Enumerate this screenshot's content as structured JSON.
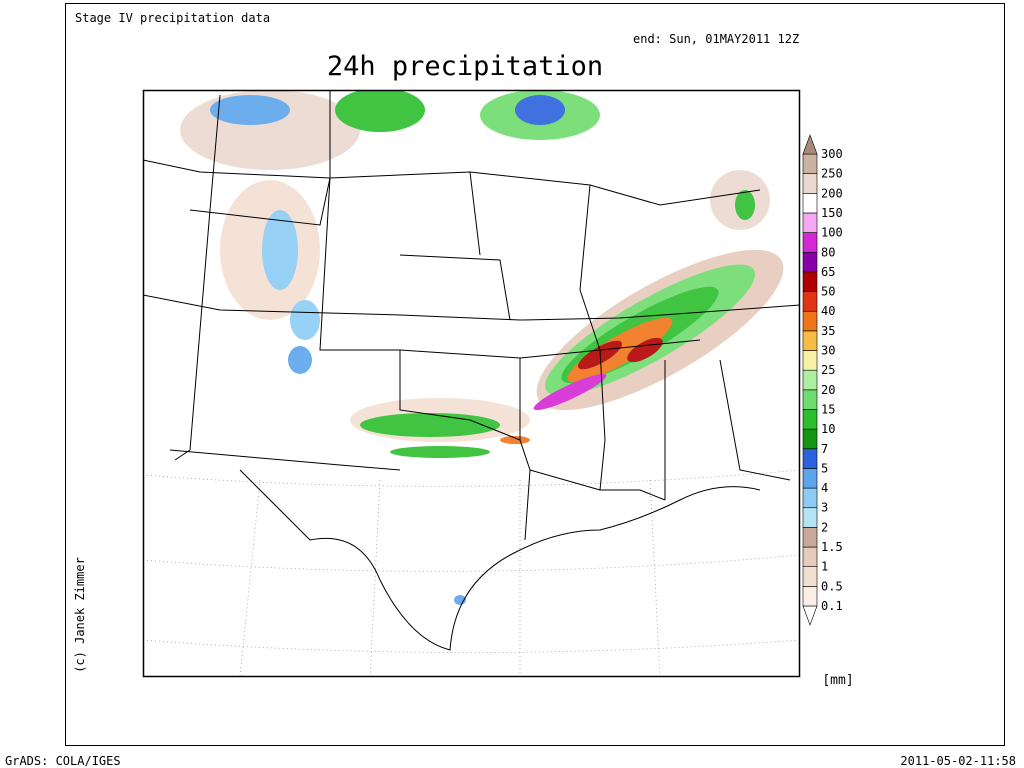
{
  "header": {
    "source": "Stage IV precipitation data",
    "end": "end: Sun, 01MAY2011 12Z",
    "title": "24h precipitation"
  },
  "credit": "(c) Janek Zimmer",
  "legend": {
    "levels": [
      0.1,
      0.5,
      1,
      1.5,
      2,
      3,
      4,
      5,
      7,
      10,
      15,
      20,
      25,
      30,
      35,
      40,
      50,
      65,
      80,
      100,
      150,
      200,
      250,
      300
    ],
    "colors": [
      "#ffffff",
      "#fbeee6",
      "#f3dfd2",
      "#e6cabb",
      "#c8a898",
      "#b4e4f4",
      "#8cccf4",
      "#5ca4ec",
      "#2a62dc",
      "#149614",
      "#2cbe2c",
      "#6edc6e",
      "#acf0a0",
      "#f8f2a4",
      "#f8bc44",
      "#f07418",
      "#e03414",
      "#b00000",
      "#8a00a8",
      "#d428d4",
      "#f4a8f4",
      "#ffffff",
      "#ead8ce",
      "#ccb2a2",
      "#a88a78"
    ],
    "unit": "[mm]"
  },
  "footer": {
    "software": "GrADS: COLA/IGES",
    "timestamp": "2011-05-02-11:58"
  }
}
